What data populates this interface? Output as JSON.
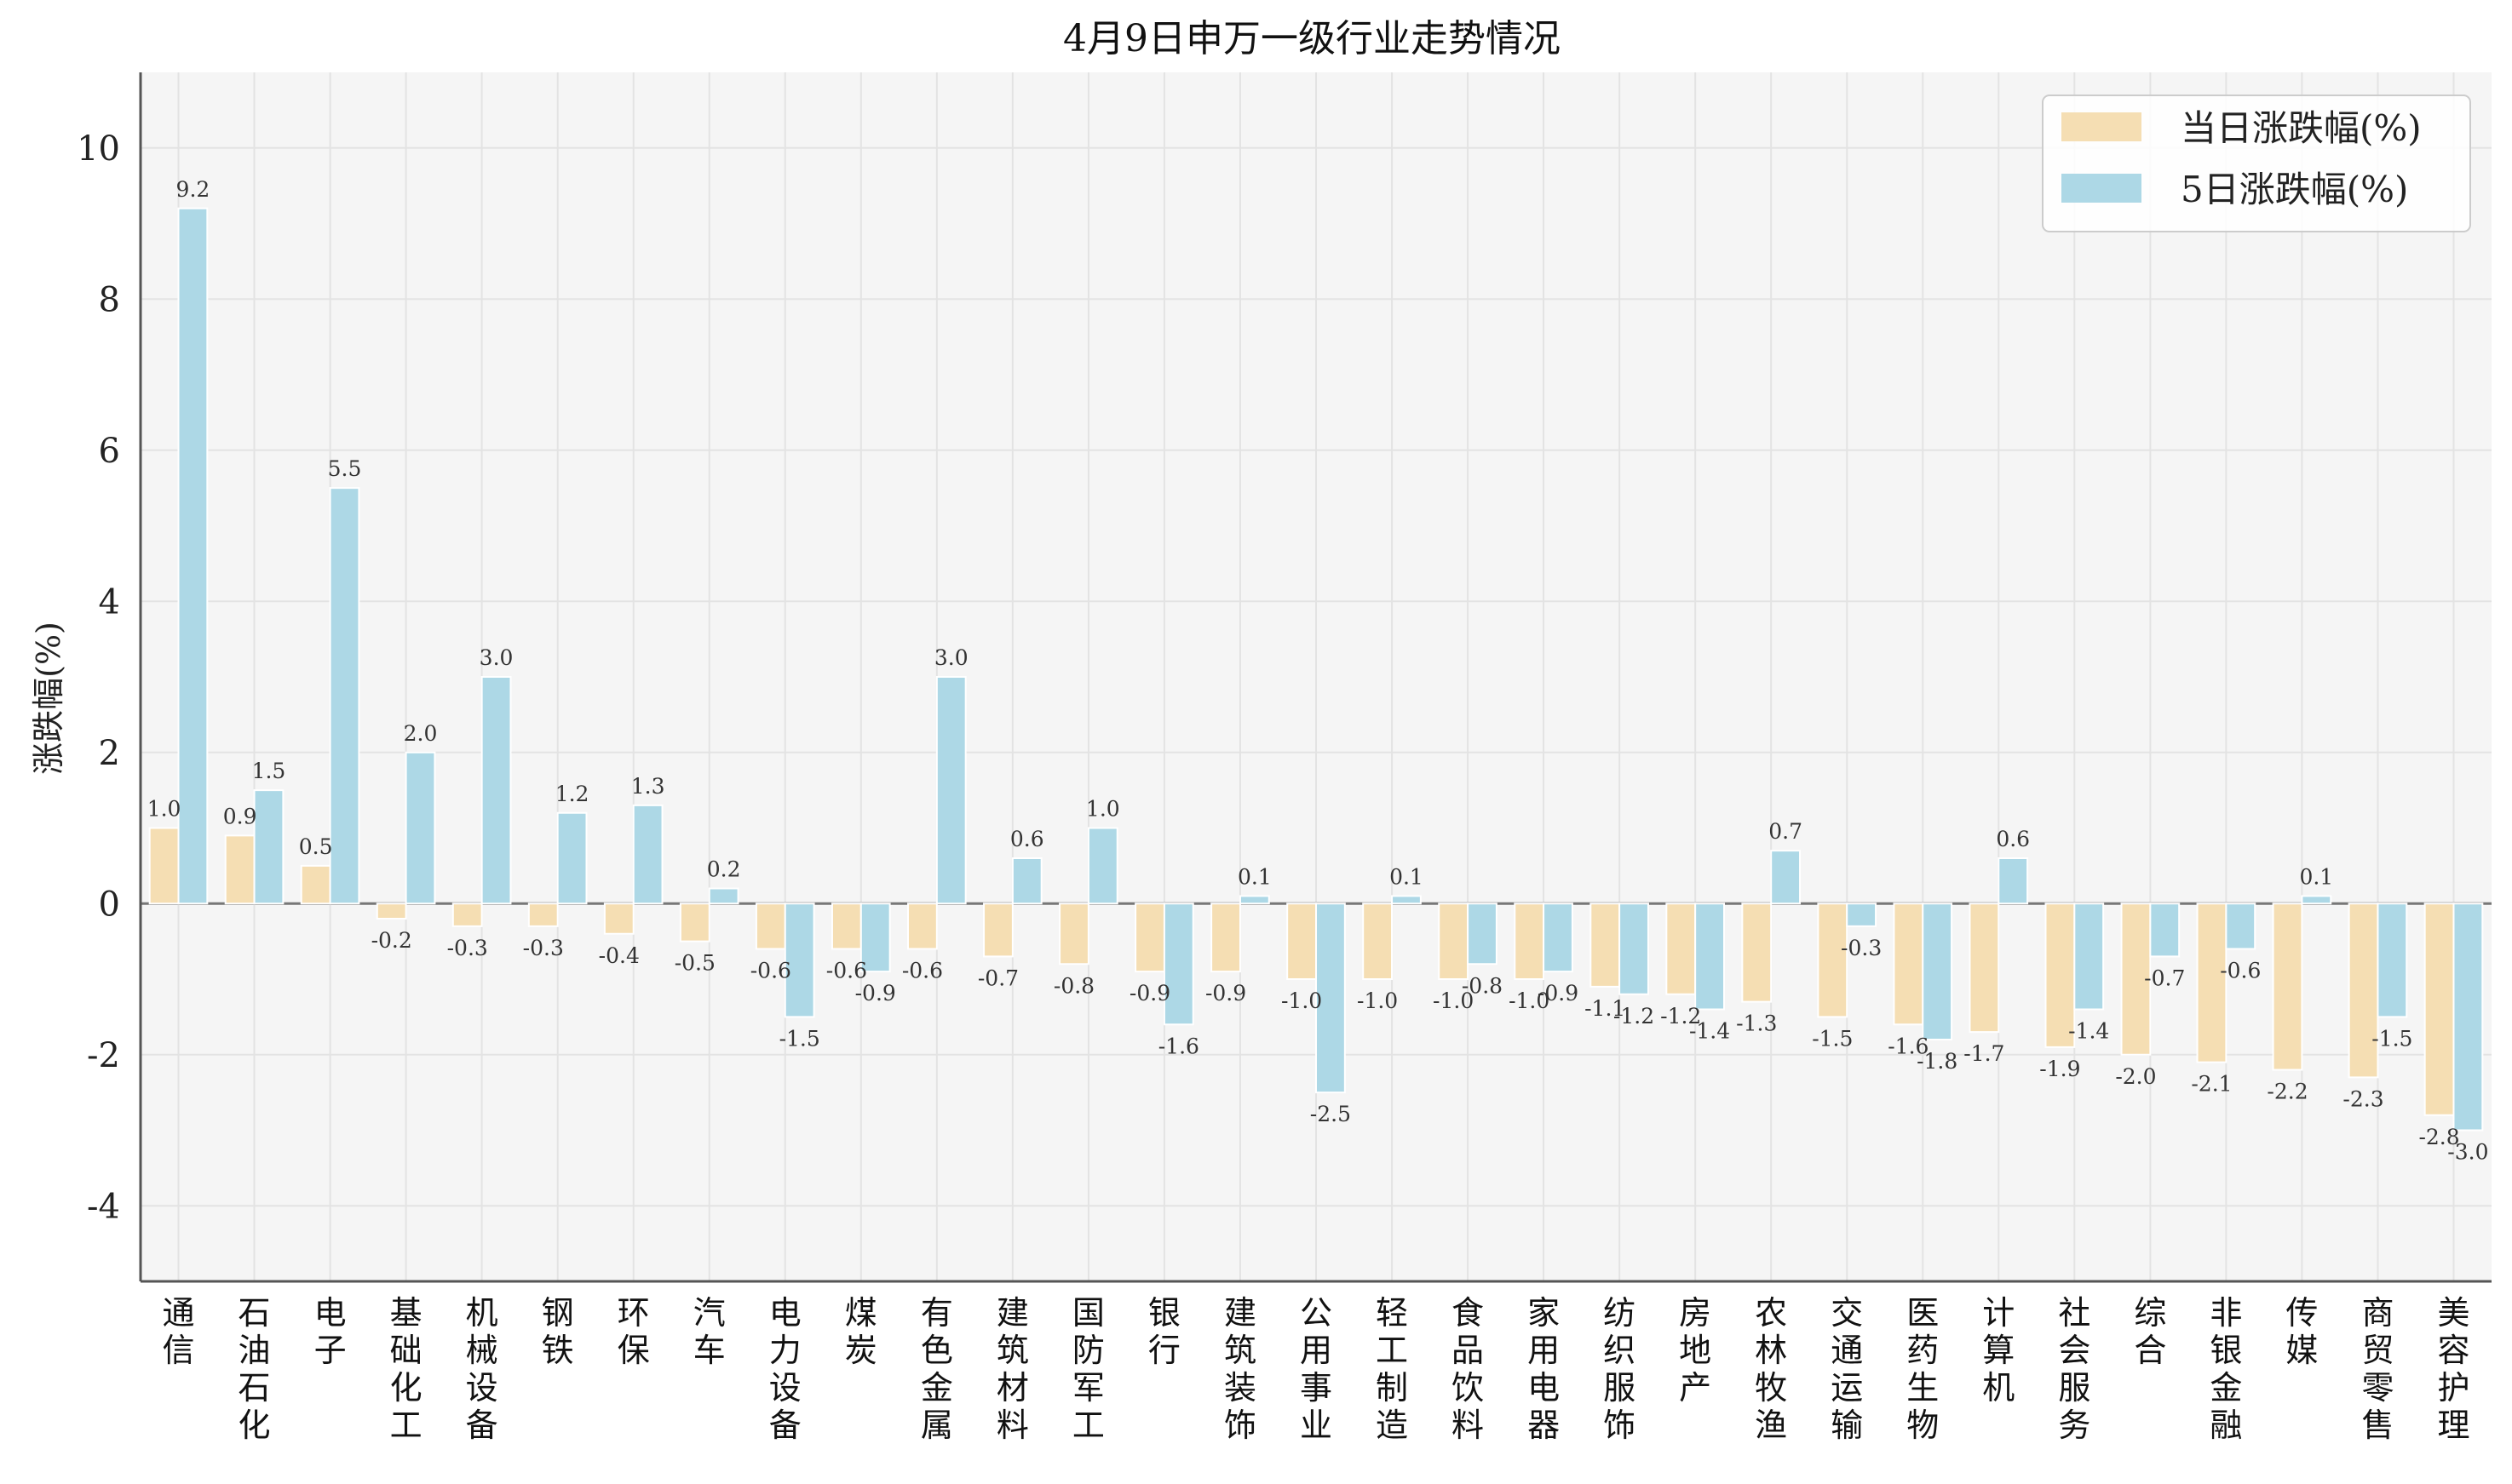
{
  "chart_data": {
    "type": "bar",
    "title": "4月9日申万一级行业走势情况",
    "xlabel": "",
    "ylabel": "涨跌幅(%)",
    "ylim": [
      -5,
      11
    ],
    "yticks": [
      -4,
      -2,
      0,
      2,
      4,
      6,
      8,
      10
    ],
    "ytick_labels": [
      "-4",
      "-2",
      "0",
      "2",
      "4",
      "6",
      "8",
      "10"
    ],
    "grid": true,
    "legend_position": "top-right",
    "categories": [
      "通信",
      "石油石化",
      "电子",
      "基础化工",
      "机械设备",
      "钢铁",
      "环保",
      "汽车",
      "电力设备",
      "煤炭",
      "有色金属",
      "建筑材料",
      "国防军工",
      "银行",
      "建筑装饰",
      "公用事业",
      "轻工制造",
      "食品饮料",
      "家用电器",
      "纺织服饰",
      "房地产",
      "农林牧渔",
      "交通运输",
      "医药生物",
      "计算机",
      "社会服务",
      "综合",
      "非银金融",
      "传媒",
      "商贸零售",
      "美容护理"
    ],
    "series": [
      {
        "name": "当日涨跌幅(%)",
        "color": "#f5deb3",
        "values": [
          1.0,
          0.9,
          0.5,
          -0.2,
          -0.3,
          -0.3,
          -0.4,
          -0.5,
          -0.6,
          -0.6,
          -0.6,
          -0.7,
          -0.8,
          -0.9,
          -0.9,
          -1.0,
          -1.0,
          -1.0,
          -1.0,
          -1.1,
          -1.2,
          -1.3,
          -1.5,
          -1.6,
          -1.7,
          -1.9,
          -2.0,
          -2.1,
          -2.2,
          -2.3,
          -2.8
        ],
        "labels": [
          "1.0",
          "0.9",
          "0.5",
          "-0.2",
          "-0.3",
          "-0.3",
          "-0.4",
          "-0.5",
          "-0.6",
          "-0.6",
          "-0.6",
          "-0.7",
          "-0.8",
          "-0.9",
          "-0.9",
          "-1.0",
          "-1.0",
          "-1.0",
          "-1.0",
          "-1.1",
          "-1.2",
          "-1.3",
          "-1.5",
          "-1.6",
          "-1.7",
          "-1.9",
          "-2.0",
          "-2.1",
          "-2.2",
          "-2.3",
          "-2.8"
        ]
      },
      {
        "name": "5日涨跌幅(%)",
        "color": "#add8e6",
        "values": [
          9.2,
          1.5,
          5.5,
          2.0,
          3.0,
          1.2,
          1.3,
          0.2,
          -1.5,
          -0.9,
          3.0,
          0.6,
          1.0,
          -1.6,
          0.1,
          -2.5,
          0.1,
          -0.8,
          -0.9,
          -1.2,
          -1.4,
          0.7,
          -0.3,
          -1.8,
          0.6,
          -1.4,
          -0.7,
          -0.6,
          0.1,
          -1.5,
          -3.0
        ],
        "labels": [
          "9.2",
          "1.5",
          "5.5",
          "2.0",
          "3.0",
          "1.2",
          "1.3",
          "0.2",
          "-1.5",
          "-0.9",
          "3.0",
          "0.6",
          "1.0",
          "-1.6",
          "0.1",
          "-2.5",
          "0.1",
          "-0.8",
          "-0.9",
          "-1.2",
          "-1.4",
          "0.7",
          "-0.3",
          "-1.8",
          "0.6",
          "-1.4",
          "-0.7",
          "-0.6",
          "0.1",
          "-1.5",
          "-3.0"
        ]
      }
    ]
  },
  "style": {
    "plot_bg": "#f5f5f5",
    "grid_color": "#e3e3e3",
    "axis_color": "#555555",
    "zero_line_color": "#777777"
  }
}
